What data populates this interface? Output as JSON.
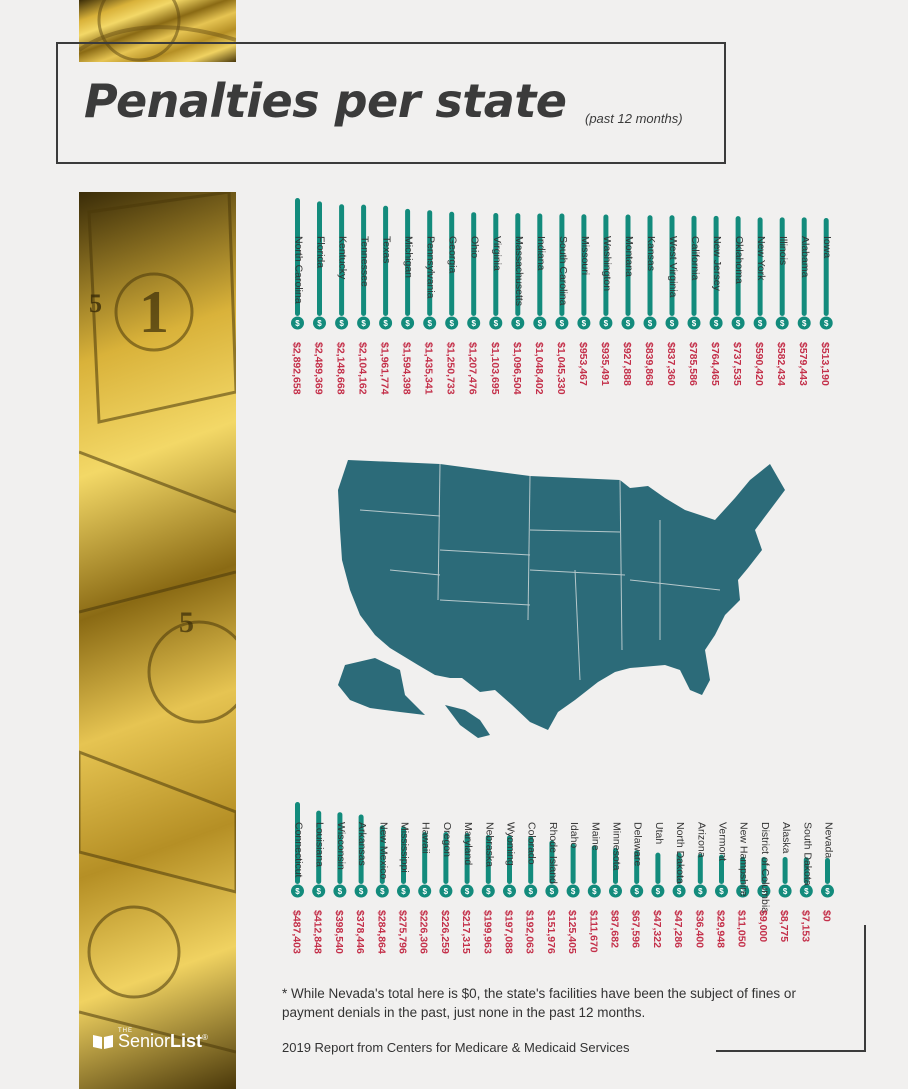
{
  "header": {
    "title": "Penalties per state",
    "subtitle": "(past 12 months)"
  },
  "footnote": "* While Nevada's total here is $0, the state's facilities have been the subject of fines or payment denials in the past, just none in the past 12 months.",
  "source": "2019 Report from Centers for Medicare & Medicaid Services",
  "logo": {
    "small": "THE",
    "brand_light": "Senior",
    "brand_bold": "List",
    "mark": "®"
  },
  "colors": {
    "bar": "#138b7c",
    "value_text": "#c4304a",
    "label_text": "#333333",
    "map": "#2c6b79"
  },
  "icons": [
    "dollar-circle-icon",
    "us-map-icon",
    "book-logo-icon"
  ],
  "chart_data": [
    {
      "type": "bar",
      "orientation": "vertical",
      "categories": [
        "North Carolina",
        "Florida",
        "Kentucky",
        "Tennessee",
        "Texas",
        "Michigan",
        "Pennsylvania",
        "Georgia",
        "Ohio",
        "Virginia",
        "Massachusetts",
        "Indiana",
        "South Carolina",
        "Missouri",
        "Washington",
        "Montana",
        "Kansas",
        "West Virginia",
        "California",
        "New Jersey",
        "Oklahoma",
        "New York",
        "Illinois",
        "Alabama",
        "Iowa"
      ],
      "value_labels": [
        "$2,892,658",
        "$2,489,369",
        "$2,148,668",
        "$2,104,162",
        "$1,961,774",
        "$1,594,398",
        "$1,435,341",
        "$1,250,733",
        "$1,207,476",
        "$1,103,695",
        "$1,096,504",
        "$1,048,402",
        "$1,045,330",
        "$953,467",
        "$935,491",
        "$927,888",
        "$839,868",
        "$837,360",
        "$785,586",
        "$764,465",
        "$737,535",
        "$590,420",
        "$582,434",
        "$579,443",
        "$513,190"
      ],
      "values": [
        2892658,
        2489369,
        2148668,
        2104162,
        1961774,
        1594398,
        1435341,
        1250733,
        1207476,
        1103695,
        1096504,
        1048402,
        1045330,
        953467,
        935491,
        927888,
        839868,
        837360,
        785586,
        764465,
        737535,
        590420,
        582434,
        579443,
        513190
      ]
    },
    {
      "type": "bar",
      "orientation": "vertical",
      "categories": [
        "Connecticut",
        "Louisiana",
        "Wisconsin",
        "Arkansas",
        "New Mexico",
        "Mississippi",
        "Hawaii",
        "Oregon",
        "Maryland",
        "Nebraska",
        "Wyoming",
        "Colorado",
        "Rhode Island",
        "Idaho",
        "Maine",
        "Minnesota",
        "Delaware",
        "Utah",
        "North Dakota",
        "Arizona",
        "Vermont",
        "New Hampshire",
        "District of Columbia",
        "Alaska",
        "South Dakota",
        "Nevada"
      ],
      "value_labels": [
        "$487,403",
        "$412,848",
        "$398,540",
        "$378,446",
        "$284,864",
        "$275,796",
        "$226,306",
        "$226,259",
        "$217,315",
        "$199,963",
        "$197,088",
        "$192,063",
        "$151,976",
        "$125,405",
        "$111,670",
        "$87,682",
        "$67,596",
        "$47,322",
        "$47,286",
        "$36,400",
        "$29,948",
        "$11,050",
        "$9,000",
        "$8,775",
        "$7,153",
        "$0"
      ],
      "values": [
        487403,
        412848,
        398540,
        378446,
        284864,
        275796,
        226306,
        226259,
        217315,
        199963,
        197088,
        192063,
        151976,
        125405,
        111670,
        87682,
        67596,
        47322,
        47286,
        36400,
        29948,
        11050,
        9000,
        8775,
        7153,
        0
      ]
    }
  ]
}
